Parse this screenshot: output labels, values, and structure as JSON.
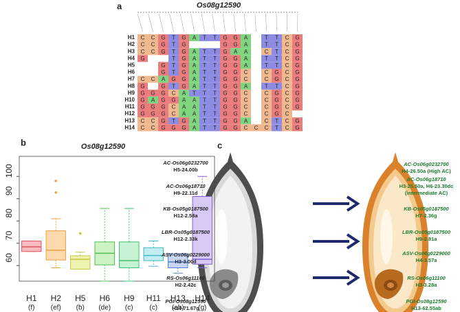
{
  "panel_a": {
    "label": "a",
    "title": "Os08g12590",
    "rows": [
      {
        "name": "H1",
        "bases": [
          "C",
          "C",
          "G",
          "T",
          "G",
          "A",
          "T",
          "T",
          "G",
          "G",
          "A",
          null,
          "T",
          "T",
          "C",
          "G"
        ]
      },
      {
        "name": "H2",
        "bases": [
          "C",
          "C",
          "G",
          "T",
          "G",
          null,
          null,
          null,
          "G",
          "G",
          "A",
          null,
          "T",
          "T",
          "C",
          "G"
        ]
      },
      {
        "name": "H3",
        "bases": [
          "C",
          "C",
          "G",
          "T",
          "G",
          "A",
          "T",
          "T",
          "G",
          "A",
          "A",
          null,
          "C",
          "T",
          "C",
          "G"
        ]
      },
      {
        "name": "H4",
        "bases": [
          "G",
          null,
          null,
          "T",
          "G",
          "A",
          "T",
          "T",
          "G",
          "G",
          "A",
          null,
          "T",
          "T",
          "C",
          "G"
        ]
      },
      {
        "name": "H5",
        "bases": [
          null,
          null,
          "G",
          "T",
          "G",
          "A",
          "T",
          "T",
          "G",
          "G",
          "A",
          null,
          "T",
          "T",
          "C",
          "G"
        ]
      },
      {
        "name": "H6",
        "bases": [
          null,
          null,
          "G",
          "T",
          "G",
          "A",
          "T",
          "T",
          "G",
          "G",
          "C",
          null,
          "C",
          "G",
          "C",
          "G"
        ]
      },
      {
        "name": "H7",
        "bases": [
          "C",
          "C",
          "A",
          "G",
          "G",
          "A",
          "T",
          "T",
          "G",
          "G",
          "C",
          null,
          "C",
          "G",
          "C",
          "G"
        ]
      },
      {
        "name": "H8",
        "bases": [
          "G",
          null,
          "G",
          "T",
          "G",
          "A",
          "T",
          "T",
          "G",
          "G",
          "A",
          null,
          "T",
          "T",
          "C",
          "G"
        ]
      },
      {
        "name": "H9",
        "bases": [
          "G",
          "G",
          "G",
          "C",
          "A",
          "T",
          "T",
          "T",
          "G",
          "G",
          "C",
          null,
          "C",
          "G",
          "C",
          "G"
        ]
      },
      {
        "name": "H10",
        "bases": [
          "G",
          "A",
          "G",
          "G",
          "A",
          "A",
          "T",
          "T",
          "G",
          "G",
          "C",
          null,
          "C",
          "G",
          "C",
          "G"
        ]
      },
      {
        "name": "H11",
        "bases": [
          "G",
          "G",
          "G",
          "C",
          "A",
          "A",
          "T",
          "T",
          "G",
          "G",
          "C",
          null,
          "C",
          "G",
          "C",
          "G"
        ]
      },
      {
        "name": "H12",
        "bases": [
          "G",
          "G",
          "G",
          "C",
          "A",
          "A",
          "T",
          "T",
          "G",
          "G",
          "C",
          null,
          "C",
          "G",
          "C",
          null
        ]
      },
      {
        "name": "H13",
        "bases": [
          "C",
          "C",
          "G",
          "T",
          "G",
          "A",
          "T",
          "T",
          "G",
          "G",
          "A",
          null,
          "C",
          "T",
          "C",
          "G"
        ]
      },
      {
        "name": "H14",
        "bases": [
          "C",
          "C",
          "G",
          "G",
          "G",
          "A",
          "T",
          "T",
          "G",
          "G",
          "C",
          "C",
          "C",
          "T",
          "C",
          "G"
        ]
      }
    ],
    "base_colors": {
      "A": "#7fd47f",
      "T": "#8c8ce2",
      "G": "#e97c7c",
      "C": "#f0b88e"
    }
  },
  "chart_data": {
    "type": "box",
    "label": "b",
    "title": "Os08g12590",
    "categories": [
      "H1",
      "H2",
      "H5",
      "H6",
      "H9",
      "H11",
      "H13",
      "H14"
    ],
    "groups": [
      "(f)",
      "(ef)",
      "(b)",
      "(de)",
      "(c)",
      "(c)",
      "(ab)",
      "(g)"
    ],
    "colors": [
      "#e0545e",
      "#f0a040",
      "#c8c840",
      "#50c050",
      "#40c070",
      "#40b8c0",
      "#5080d0",
      "#8060d0"
    ],
    "fills": [
      "#f8bcc0",
      "#fdd9ae",
      "#eef2b0",
      "#cdf2c4",
      "#c8f2d4",
      "#c4eef2",
      "#c8d6f4",
      "#d8c8f6"
    ],
    "boxes": [
      {
        "min": 66.3,
        "q1": 66.3,
        "median": 68.4,
        "q3": 71,
        "max": 71,
        "outliers": []
      },
      {
        "min": 59,
        "q1": 62.5,
        "median": 66.9,
        "q3": 75.6,
        "max": 81,
        "outliers": [
          98,
          92.8
        ]
      },
      {
        "min": 58.4,
        "q1": 58.4,
        "median": 62.8,
        "q3": 64.4,
        "max": 66,
        "outliers": [
          74.4
        ]
      },
      {
        "min": 53,
        "q1": 60.3,
        "median": 65.5,
        "q3": 70.6,
        "max": 85.6,
        "outliers": []
      },
      {
        "min": 53,
        "q1": 59,
        "median": 62.2,
        "q3": 70.6,
        "max": 85.6,
        "outliers": []
      },
      {
        "min": 59.7,
        "q1": 62.2,
        "median": 64.5,
        "q3": 68,
        "max": 71,
        "outliers": []
      },
      {
        "min": 56.6,
        "q1": 59,
        "median": 61.6,
        "q3": 65.3,
        "max": 65.3,
        "outliers": []
      },
      {
        "min": 59,
        "q1": 60.6,
        "median": 62.8,
        "q3": 91,
        "max": 100,
        "outliers": []
      }
    ],
    "ylim": [
      53,
      109
    ],
    "yticks": [
      60,
      70,
      80,
      90,
      100
    ]
  },
  "panel_c": {
    "label": "c",
    "left": [
      {
        "lines": [
          "AC-Os06g0232700",
          "H5-24.00b"
        ]
      },
      {
        "lines": [
          "AC-Os06g18710",
          "H9-22.11d"
        ]
      },
      {
        "lines": [
          "KB-Os05g0187500",
          "H12-2.58a"
        ]
      },
      {
        "lines": [
          "LBR-Os05g0187500",
          "H12-2.33k"
        ]
      },
      {
        "lines": [
          "ASV-Os06g0229000",
          "H3-3.00d"
        ]
      },
      {
        "lines": [
          "RS-Os06g11100",
          "H2-2.42c"
        ]
      },
      {
        "lines": [
          "PGI-Os08g12590",
          "H14-71.67g"
        ]
      }
    ],
    "right": [
      {
        "lines": [
          "AC-Os06g0232700",
          "H4-26.50a (High AC)"
        ]
      },
      {
        "lines": [
          "AC-Os06g18710",
          "H3-25.50a, H6-23.30dc",
          "(intermediate AC)"
        ]
      },
      {
        "lines": [
          "KB-Os05g0187500",
          "H7-2.36g"
        ]
      },
      {
        "lines": [
          "LBR-Os05g0187500",
          "H9-2.81a"
        ]
      },
      {
        "lines": [
          "ASV-Os06g0229000",
          "H4-3.57a"
        ]
      },
      {
        "lines": [
          "RS-Os06g11100",
          "H3-3.28a"
        ]
      },
      {
        "lines": [
          "PGI-Os08g12590",
          "H13-62.55ab"
        ]
      }
    ]
  }
}
